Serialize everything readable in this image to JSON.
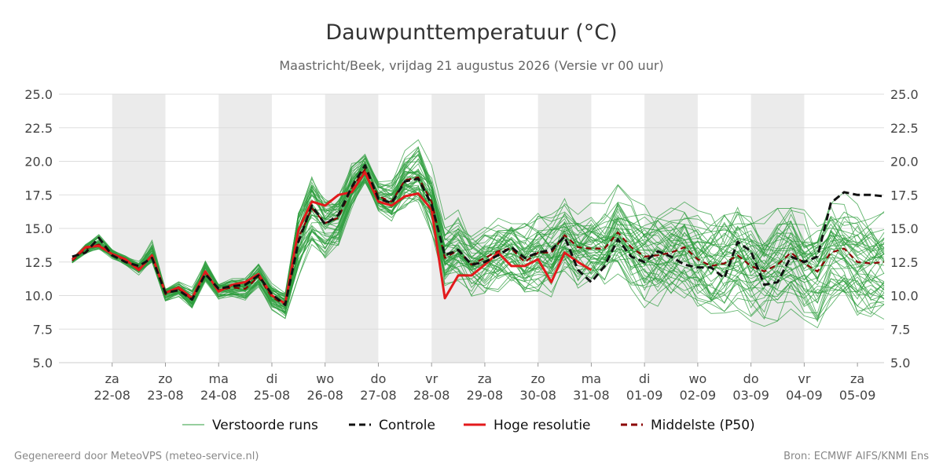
{
  "chart_data": {
    "type": "line",
    "title": "Dauwpunttemperatuur (°C)",
    "subtitle": "Maastricht/Beek, vrijdag 21 augustus 2026 (Versie vr 00 uur)",
    "ylim": [
      5.0,
      25.0
    ],
    "yticks": [
      "5.0",
      "7.5",
      "10.0",
      "12.5",
      "15.0",
      "17.5",
      "20.0",
      "22.5",
      "25.0"
    ],
    "x_unit": "days since 21-08 00:00",
    "xlim": [
      0.25,
      15.5
    ],
    "xticks": [
      {
        "day": "za",
        "date": "22-08"
      },
      {
        "day": "zo",
        "date": "23-08"
      },
      {
        "day": "ma",
        "date": "24-08"
      },
      {
        "day": "di",
        "date": "25-08"
      },
      {
        "day": "wo",
        "date": "26-08"
      },
      {
        "day": "do",
        "date": "27-08"
      },
      {
        "day": "vr",
        "date": "28-08"
      },
      {
        "day": "za",
        "date": "29-08"
      },
      {
        "day": "zo",
        "date": "30-08"
      },
      {
        "day": "ma",
        "date": "31-08"
      },
      {
        "day": "di",
        "date": "01-09"
      },
      {
        "day": "wo",
        "date": "02-09"
      },
      {
        "day": "do",
        "date": "03-09"
      },
      {
        "day": "vr",
        "date": "04-09"
      },
      {
        "day": "za",
        "date": "05-09"
      }
    ],
    "shaded_days": [
      "22-08",
      "24-08",
      "26-08",
      "28-08",
      "30-08",
      "01-09",
      "03-09"
    ],
    "grid": true,
    "legend_position": "bottom",
    "series": [
      {
        "name": "Hoge resolutie",
        "color": "#e31a1c",
        "style": "solid",
        "x": [
          0.25,
          0.5,
          0.75,
          1.0,
          1.25,
          1.5,
          1.75,
          2.0,
          2.25,
          2.5,
          2.75,
          3.0,
          3.25,
          3.5,
          3.75,
          4.0,
          4.25,
          4.5,
          4.75,
          5.0,
          5.25,
          5.5,
          5.75,
          6.0,
          6.25,
          6.5,
          6.75,
          7.0,
          7.25,
          7.5,
          7.75,
          8.0,
          8.25,
          8.5,
          8.75,
          9.0,
          9.25,
          9.5,
          9.75,
          10.0
        ],
        "y": [
          12.7,
          13.6,
          13.7,
          13.1,
          12.7,
          11.9,
          13.0,
          10.2,
          10.6,
          9.8,
          11.8,
          10.3,
          10.8,
          11.0,
          11.6,
          10.0,
          9.4,
          14.9,
          17.0,
          16.7,
          17.5,
          17.7,
          19.2,
          17.0,
          16.7,
          17.4,
          17.6,
          16.4,
          9.8,
          11.5,
          11.5,
          12.3,
          13.2,
          12.2,
          12.2,
          12.7,
          11.0,
          13.2,
          12.5,
          11.9
        ]
      },
      {
        "name": "Controle",
        "color": "#111111",
        "style": "dashed",
        "x": [
          0.25,
          0.5,
          0.75,
          1.0,
          1.25,
          1.5,
          1.75,
          2.0,
          2.25,
          2.5,
          2.75,
          3.0,
          3.25,
          3.5,
          3.75,
          4.0,
          4.25,
          4.5,
          4.75,
          5.0,
          5.25,
          5.5,
          5.75,
          6.0,
          6.25,
          6.5,
          6.75,
          7.0,
          7.25,
          7.5,
          7.75,
          8.0,
          8.25,
          8.5,
          8.75,
          9.0,
          9.25,
          9.5,
          9.75,
          10.0,
          10.25,
          10.5,
          10.75,
          11.0,
          11.25,
          11.5,
          11.75,
          12.0,
          12.25,
          12.5,
          12.75,
          13.0,
          13.25,
          13.5,
          13.75,
          14.0,
          14.25,
          14.5,
          14.75,
          15.0,
          15.25,
          15.5
        ],
        "y": [
          12.9,
          13.2,
          14.3,
          13.0,
          12.5,
          12.2,
          12.8,
          10.2,
          10.4,
          9.7,
          11.6,
          10.5,
          10.7,
          10.8,
          11.5,
          10.1,
          9.3,
          14.0,
          16.7,
          15.3,
          16.0,
          18.1,
          19.7,
          17.2,
          16.9,
          18.5,
          18.7,
          16.8,
          13.0,
          13.4,
          12.3,
          12.5,
          13.0,
          13.6,
          12.8,
          13.2,
          13.4,
          14.4,
          11.9,
          11.0,
          12.2,
          14.2,
          12.9,
          12.5,
          13.3,
          12.9,
          12.3,
          12.1,
          12.1,
          11.3,
          14.0,
          13.3,
          10.8,
          11.0,
          12.9,
          12.5,
          12.9,
          16.9,
          17.7,
          17.5,
          17.5,
          17.4
        ]
      },
      {
        "name": "Middelste (P50)",
        "color": "#8b0000",
        "style": "dashed",
        "x": [
          0.25,
          0.5,
          0.75,
          1.0,
          1.25,
          1.5,
          1.75,
          2.0,
          2.25,
          2.5,
          2.75,
          3.0,
          3.25,
          3.5,
          3.75,
          4.0,
          4.25,
          4.5,
          4.75,
          5.0,
          5.25,
          5.5,
          5.75,
          6.0,
          6.25,
          6.5,
          6.75,
          7.0,
          7.25,
          7.5,
          7.75,
          8.0,
          8.25,
          8.5,
          8.75,
          9.0,
          9.25,
          9.5,
          9.75,
          10.0,
          10.25,
          10.5,
          10.75,
          11.0,
          11.25,
          11.5,
          11.75,
          12.0,
          12.25,
          12.5,
          12.75,
          13.0,
          13.25,
          13.5,
          13.75,
          14.0,
          14.25,
          14.5,
          14.75,
          15.0,
          15.25,
          15.5
        ],
        "y": [
          12.6,
          13.5,
          13.8,
          13.1,
          12.6,
          12.0,
          12.9,
          10.1,
          10.5,
          9.7,
          11.7,
          10.4,
          10.6,
          10.5,
          11.4,
          9.9,
          9.3,
          14.3,
          16.5,
          15.4,
          15.8,
          18.0,
          19.4,
          17.4,
          17.0,
          18.6,
          18.8,
          17.0,
          12.8,
          13.4,
          12.3,
          12.8,
          13.3,
          13.5,
          12.5,
          13.2,
          13.2,
          14.5,
          13.6,
          13.5,
          13.5,
          14.7,
          13.6,
          12.9,
          13.0,
          13.2,
          13.6,
          12.7,
          12.2,
          12.4,
          13.0,
          12.2,
          11.8,
          12.3,
          13.2,
          12.4,
          11.8,
          13.2,
          13.5,
          12.5,
          12.4,
          12.5
        ]
      }
    ],
    "ensemble": {
      "name": "Verstoorde runs",
      "color": "#2e9e3e",
      "members": 50,
      "x_step_days": 0.25,
      "spread_below_median": [
        0.2,
        0.4,
        0.4,
        0.4,
        0.4,
        0.5,
        0.6,
        0.6,
        0.6,
        0.7,
        0.7,
        0.7,
        0.8,
        0.9,
        0.9,
        1.0,
        1.0,
        2.9,
        2.7,
        2.7,
        2.4,
        1.5,
        1.2,
        1.2,
        1.5,
        2.2,
        2.7,
        3.4,
        2.8,
        2.9,
        2.8,
        3.2,
        3.2,
        3.2,
        3.3,
        3.3,
        3.3,
        3.5,
        3.5,
        3.4,
        3.6,
        3.6,
        3.6,
        3.8,
        3.8,
        3.8,
        3.8,
        3.9,
        4.0,
        4.0,
        4.1,
        4.1,
        4.1,
        4.2,
        4.2,
        4.2,
        4.2,
        4.2,
        4.2,
        4.3,
        4.3,
        4.3
      ],
      "spread_above_median": [
        0.2,
        0.4,
        1.0,
        0.4,
        0.4,
        0.6,
        1.3,
        0.5,
        0.6,
        0.9,
        1.3,
        0.7,
        0.8,
        1.0,
        1.2,
        1.0,
        1.0,
        2.2,
        2.5,
        2.4,
        2.1,
        2.3,
        1.5,
        1.2,
        1.8,
        2.2,
        2.8,
        2.7,
        2.9,
        3.0,
        2.4,
        2.3,
        2.5,
        2.7,
        3.4,
        3.4,
        3.4,
        3.6,
        3.4,
        3.4,
        3.5,
        3.6,
        3.6,
        3.8,
        3.9,
        3.8,
        3.8,
        4.0,
        4.0,
        4.1,
        4.0,
        4.0,
        4.1,
        4.2,
        4.2,
        4.2,
        4.1,
        4.2,
        4.2,
        4.3,
        4.3,
        4.3
      ],
      "ymin_shown": 6.0,
      "ymax_shown": 21.9
    }
  },
  "legend": [
    {
      "label": "Verstoorde runs",
      "color": "#2e9e3e",
      "style": "thin"
    },
    {
      "label": "Controle",
      "color": "#111111",
      "style": "dashed"
    },
    {
      "label": "Hoge resolutie",
      "color": "#e31a1c",
      "style": "solid"
    },
    {
      "label": "Middelste (P50)",
      "color": "#8b0000",
      "style": "dashed"
    }
  ],
  "footer": {
    "left": "Gegenereerd door MeteoVPS (meteo-service.nl)",
    "right": "Bron: ECMWF AIFS/KNMI Ens"
  },
  "colors": {
    "grid": "#dddddd",
    "shade": "#ebebeb",
    "text": "#333333"
  }
}
